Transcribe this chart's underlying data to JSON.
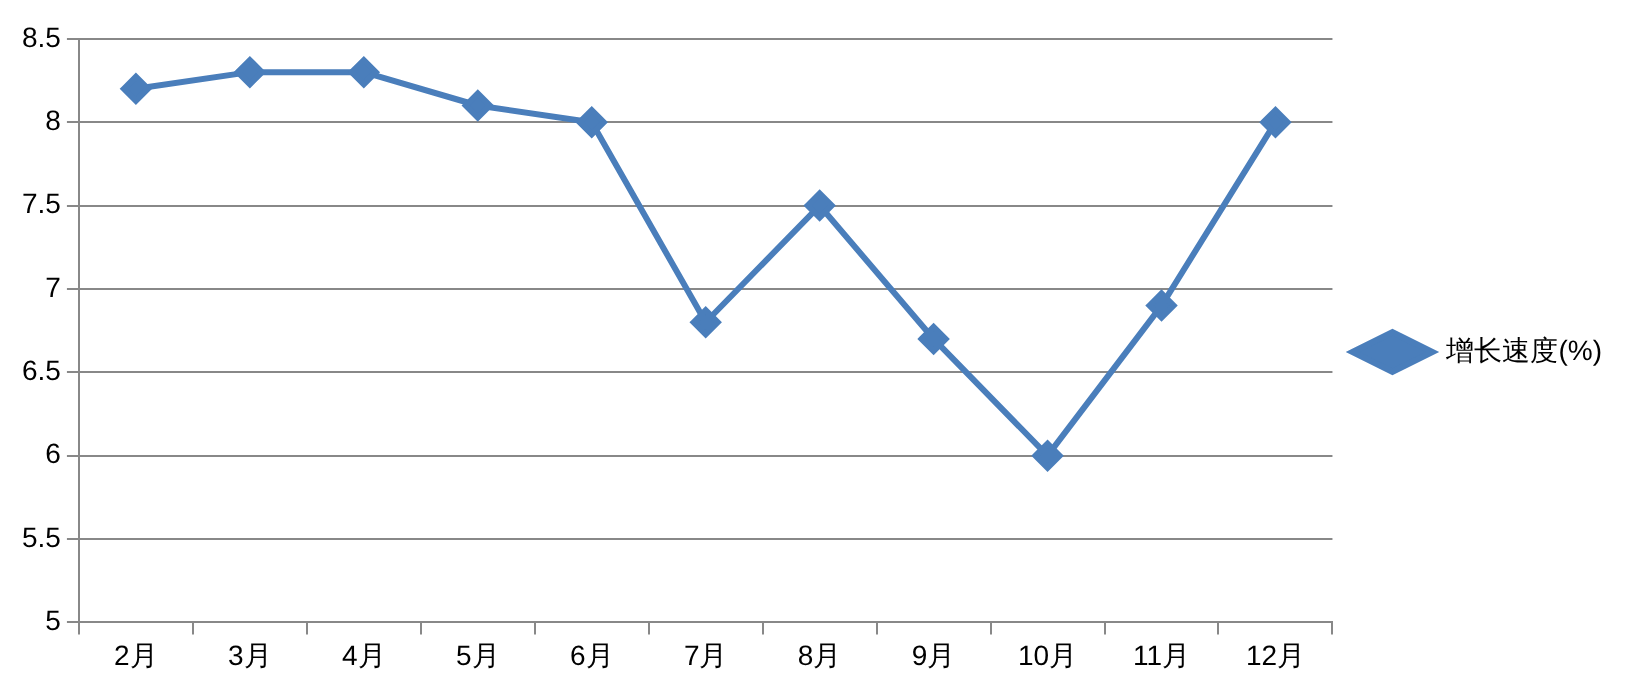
{
  "chart_data": {
    "type": "line",
    "categories": [
      "2月",
      "3月",
      "4月",
      "5月",
      "6月",
      "7月",
      "8月",
      "9月",
      "10月",
      "11月",
      "12月"
    ],
    "series": [
      {
        "name": "增长速度(%)",
        "color": "#4a7ebb",
        "values": [
          8.2,
          8.3,
          8.3,
          8.1,
          8.0,
          6.8,
          7.5,
          6.7,
          6.0,
          6.9,
          8.0
        ]
      }
    ],
    "ylim": [
      5,
      8.5
    ],
    "yticks": [
      5,
      5.5,
      6,
      6.5,
      7,
      7.5,
      8,
      8.5
    ],
    "grid": "y",
    "legend": "right",
    "marker": "diamond",
    "line_style": "solid"
  }
}
